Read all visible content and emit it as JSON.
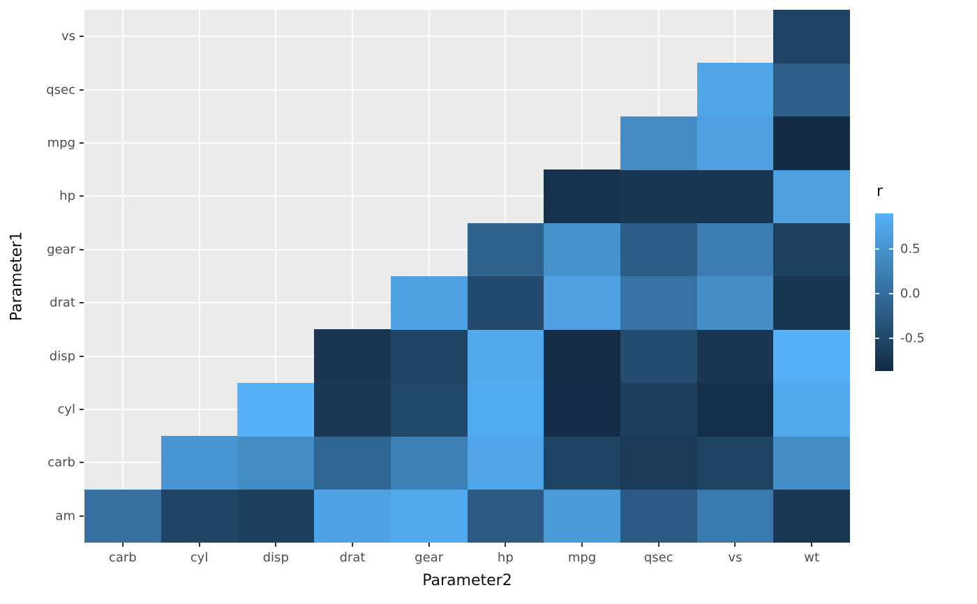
{
  "figure": {
    "background": "#FFFFFF",
    "panel_background": "#EBEBEB",
    "gridline_color": "#FFFFFF",
    "axis_text_color": "#4D4D4D",
    "axis_title_color": "#111111",
    "tick_mark_color": "#333333"
  },
  "chart_data": {
    "type": "heatmap",
    "title": "",
    "xlabel": "Parameter2",
    "ylabel": "Parameter1",
    "x_categories": [
      "carb",
      "cyl",
      "disp",
      "drat",
      "gear",
      "hp",
      "mpg",
      "qsec",
      "vs",
      "wt"
    ],
    "y_categories_top_to_bottom": [
      "vs",
      "qsec",
      "mpg",
      "hp",
      "gear",
      "drat",
      "disp",
      "cyl",
      "carb",
      "am"
    ],
    "grid": "major-on",
    "legend_position": "right",
    "color_scale": {
      "low": "#132B43",
      "high": "#56B1F7",
      "domain_min": -0.868,
      "domain_max": 0.902
    },
    "legend": {
      "title": "r",
      "ticks": [
        {
          "label": "0.5",
          "value": 0.5
        },
        {
          "label": "0.0",
          "value": 0.0
        },
        {
          "label": "-0.5",
          "value": -0.5
        }
      ]
    },
    "cells": [
      {
        "y": "am",
        "x": "carb",
        "r": 0.058
      },
      {
        "y": "am",
        "x": "cyl",
        "r": -0.523
      },
      {
        "y": "am",
        "x": "disp",
        "r": -0.591
      },
      {
        "y": "am",
        "x": "drat",
        "r": 0.713
      },
      {
        "y": "am",
        "x": "gear",
        "r": 0.794
      },
      {
        "y": "am",
        "x": "hp",
        "r": -0.243
      },
      {
        "y": "am",
        "x": "mpg",
        "r": 0.6
      },
      {
        "y": "am",
        "x": "qsec",
        "r": -0.23
      },
      {
        "y": "am",
        "x": "vs",
        "r": 0.168
      },
      {
        "y": "am",
        "x": "wt",
        "r": -0.692
      },
      {
        "y": "carb",
        "x": "cyl",
        "r": 0.527
      },
      {
        "y": "carb",
        "x": "disp",
        "r": 0.395
      },
      {
        "y": "carb",
        "x": "drat",
        "r": -0.091
      },
      {
        "y": "carb",
        "x": "gear",
        "r": 0.274
      },
      {
        "y": "carb",
        "x": "hp",
        "r": 0.75
      },
      {
        "y": "carb",
        "x": "mpg",
        "r": -0.551
      },
      {
        "y": "carb",
        "x": "qsec",
        "r": -0.656
      },
      {
        "y": "carb",
        "x": "vs",
        "r": -0.57
      },
      {
        "y": "carb",
        "x": "wt",
        "r": 0.428
      },
      {
        "y": "cyl",
        "x": "disp",
        "r": 0.902
      },
      {
        "y": "cyl",
        "x": "drat",
        "r": -0.7
      },
      {
        "y": "cyl",
        "x": "gear",
        "r": -0.493
      },
      {
        "y": "cyl",
        "x": "hp",
        "r": 0.832
      },
      {
        "y": "cyl",
        "x": "mpg",
        "r": -0.852
      },
      {
        "y": "cyl",
        "x": "qsec",
        "r": -0.591
      },
      {
        "y": "cyl",
        "x": "vs",
        "r": -0.811
      },
      {
        "y": "cyl",
        "x": "wt",
        "r": 0.782
      },
      {
        "y": "disp",
        "x": "drat",
        "r": -0.71
      },
      {
        "y": "disp",
        "x": "gear",
        "r": -0.556
      },
      {
        "y": "disp",
        "x": "hp",
        "r": 0.791
      },
      {
        "y": "disp",
        "x": "mpg",
        "r": -0.848
      },
      {
        "y": "disp",
        "x": "qsec",
        "r": -0.434
      },
      {
        "y": "disp",
        "x": "vs",
        "r": -0.71
      },
      {
        "y": "disp",
        "x": "wt",
        "r": 0.888
      },
      {
        "y": "drat",
        "x": "gear",
        "r": 0.7
      },
      {
        "y": "drat",
        "x": "hp",
        "r": -0.449
      },
      {
        "y": "drat",
        "x": "mpg",
        "r": 0.681
      },
      {
        "y": "drat",
        "x": "qsec",
        "r": 0.091
      },
      {
        "y": "drat",
        "x": "vs",
        "r": 0.44
      },
      {
        "y": "drat",
        "x": "wt",
        "r": -0.712
      },
      {
        "y": "gear",
        "x": "hp",
        "r": -0.126
      },
      {
        "y": "gear",
        "x": "mpg",
        "r": 0.48
      },
      {
        "y": "gear",
        "x": "qsec",
        "r": -0.213
      },
      {
        "y": "gear",
        "x": "vs",
        "r": 0.206
      },
      {
        "y": "gear",
        "x": "wt",
        "r": -0.583
      },
      {
        "y": "hp",
        "x": "mpg",
        "r": -0.776
      },
      {
        "y": "hp",
        "x": "qsec",
        "r": -0.708
      },
      {
        "y": "hp",
        "x": "vs",
        "r": -0.723
      },
      {
        "y": "hp",
        "x": "wt",
        "r": 0.659
      },
      {
        "y": "mpg",
        "x": "qsec",
        "r": 0.419
      },
      {
        "y": "mpg",
        "x": "vs",
        "r": 0.664
      },
      {
        "y": "mpg",
        "x": "wt",
        "r": -0.868
      },
      {
        "y": "qsec",
        "x": "vs",
        "r": 0.745
      },
      {
        "y": "qsec",
        "x": "wt",
        "r": -0.175
      },
      {
        "y": "vs",
        "x": "wt",
        "r": -0.555
      }
    ]
  }
}
